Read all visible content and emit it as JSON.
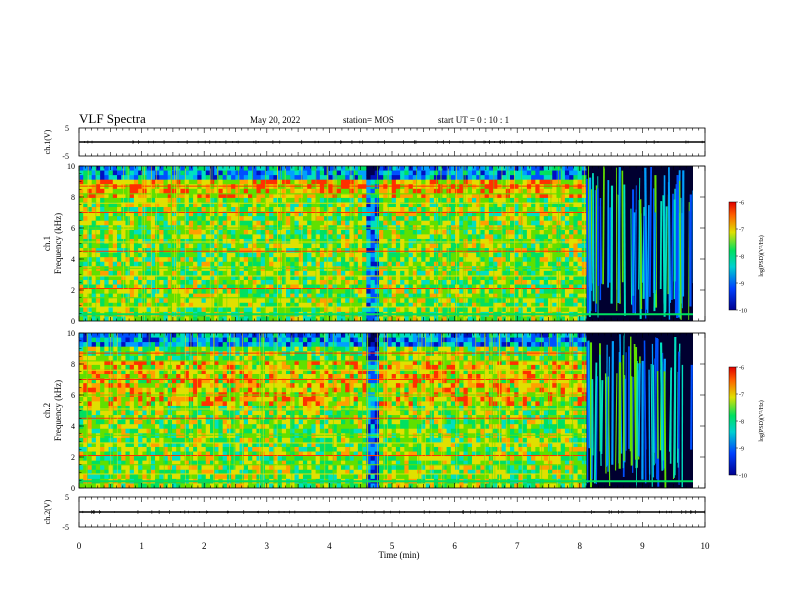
{
  "header": {
    "title": "VLF Spectra",
    "date": "May 20, 2022",
    "station": "station= MOS",
    "start": "start  UT  =  0 : 10 : 1"
  },
  "chart_data": [
    {
      "id": "ch1-waveform",
      "type": "line",
      "ylabel": "ch.1(V)",
      "ylim": [
        -5,
        5
      ],
      "y_ticks": [
        "5",
        "-5"
      ],
      "x": [
        0,
        10
      ],
      "values": [
        0,
        0
      ],
      "grid": false
    },
    {
      "id": "ch1-spectrogram",
      "type": "heatmap",
      "ylabel_line1": "ch.1",
      "ylabel_line2": "Frequency (kHz)",
      "ylim": [
        0,
        10
      ],
      "y_ticks": [
        "0",
        "2",
        "4",
        "6",
        "8",
        "10"
      ],
      "xlim": [
        0,
        10
      ],
      "colorbar": {
        "label": "log(PSD)(V²/Hz)",
        "range": [
          -10,
          -6
        ],
        "ticks": [
          "-6",
          "-7",
          "-8",
          "-9",
          "-10"
        ]
      }
    },
    {
      "id": "ch2-spectrogram",
      "type": "heatmap",
      "ylabel_line1": "ch.2",
      "ylabel_line2": "Frequency (kHz)",
      "ylim": [
        0,
        10
      ],
      "y_ticks": [
        "0",
        "2",
        "4",
        "6",
        "8",
        "10"
      ],
      "xlim": [
        0,
        10
      ],
      "colorbar": {
        "label": "log(PSD)(V²/Hz)",
        "range": [
          -10,
          -6
        ],
        "ticks": [
          "-6",
          "-7",
          "-8",
          "-9",
          "-10"
        ]
      }
    },
    {
      "id": "ch2-waveform",
      "type": "line",
      "ylabel": "ch.2(V)",
      "ylim": [
        -5,
        5
      ],
      "y_ticks": [
        "5",
        "-5"
      ],
      "x": [
        0,
        10
      ],
      "values": [
        0,
        0
      ],
      "grid": false
    }
  ],
  "x_axis": {
    "label": "Time (min)",
    "range": [
      0,
      10
    ],
    "ticks": [
      "0",
      "1",
      "2",
      "3",
      "4",
      "5",
      "6",
      "7",
      "8",
      "9",
      "10"
    ]
  },
  "colors": {
    "background_sparse": "#000033",
    "low": "#0000cc",
    "mid": "#00cc88",
    "high": "#ffcc00",
    "peak": "#ff2200"
  }
}
